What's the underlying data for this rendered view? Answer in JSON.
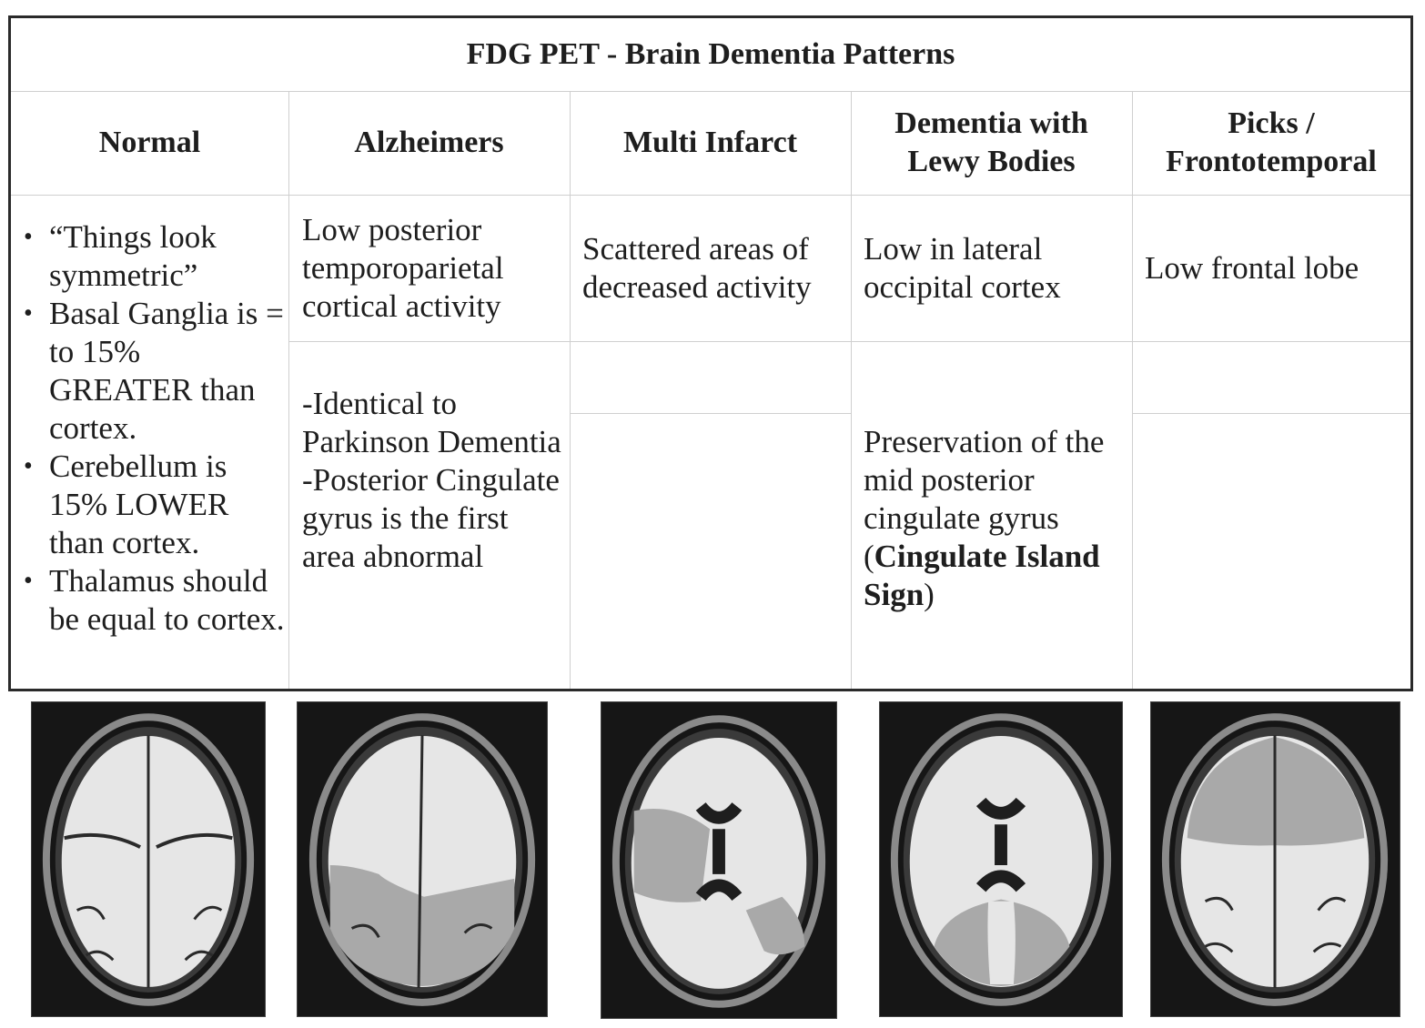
{
  "table": {
    "title": "FDG PET - Brain Dementia Patterns",
    "columns": [
      {
        "id": "normal",
        "header_lines": [
          "Normal"
        ]
      },
      {
        "id": "alzheimers",
        "header_lines": [
          "Alzheimers"
        ]
      },
      {
        "id": "multi_infarct",
        "header_lines": [
          "Multi Infarct"
        ]
      },
      {
        "id": "dlb",
        "header_lines": [
          "Dementia with",
          "Lewy Bodies"
        ]
      },
      {
        "id": "picks",
        "header_lines": [
          "Picks /",
          "Frontotemporal"
        ]
      }
    ],
    "normal_bullets": [
      "“Things look symmetric”",
      "Basal Ganglia is = to 15% GREATER than cortex.",
      "Cerebellum is 15% LOWER than cortex.",
      "Thalamus should be equal to cortex."
    ],
    "alzheimers_primary": "Low posterior temporoparietal cortical activity",
    "alzheimers_secondary_lines": [
      "-Identical to Parkinson Dementia",
      "-Posterior Cingulate gyrus is the first area abnormal"
    ],
    "multi_infarct_primary": "Scattered areas of decreased activity",
    "multi_infarct_secondary": "",
    "dlb_primary": "Low in lateral occipital cortex",
    "dlb_secondary": {
      "prefix": "Preservation of the mid posterior cingulate gyrus ",
      "open_paren": "(",
      "bold": "Cingulate Island Sign",
      "close_paren": ")"
    },
    "picks_primary": "Low frontal lobe",
    "picks_secondary": ""
  },
  "images": [
    {
      "name": "normal",
      "pattern": "uniform bright, symmetric"
    },
    {
      "name": "alzheimers",
      "pattern": "low posterior temporoparietal"
    },
    {
      "name": "multi_infarct",
      "pattern": "scattered areas, arrows"
    },
    {
      "name": "dlb",
      "pattern": "low occipital, spared posterior cingulate"
    },
    {
      "name": "picks",
      "pattern": "low frontal"
    }
  ],
  "colors": {
    "border": "#2a2a2a",
    "grid": "#cfcfcf",
    "brain_bright": "#e6e6e6",
    "brain_low": "#a9a9a9",
    "scan_bg": "#161616"
  }
}
